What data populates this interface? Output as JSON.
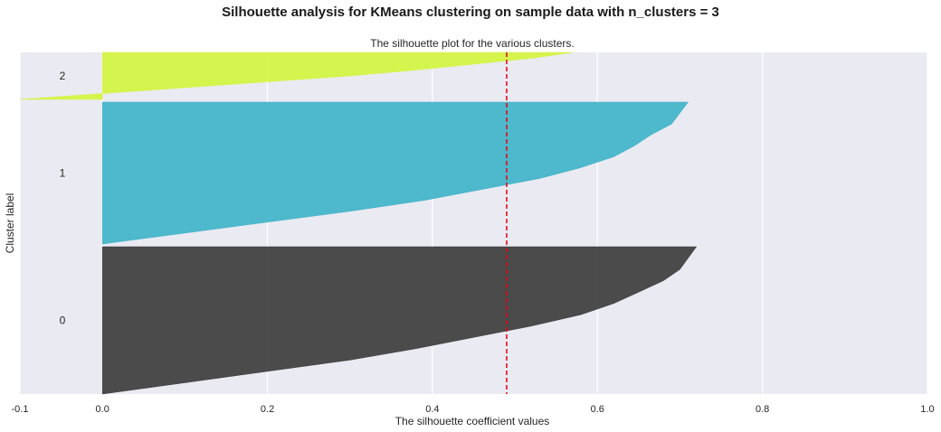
{
  "suptitle": "Silhouette analysis for KMeans clustering on sample data with n_clusters = 3",
  "chart_data": {
    "type": "area",
    "title": "The silhouette plot for the various clusters.",
    "xlabel": "The silhouette coefficient values",
    "ylabel": "Cluster label",
    "xlim": [
      -0.1,
      1.0
    ],
    "xticks": [
      "-0.1",
      "0.0",
      "0.2",
      "0.4",
      "0.6",
      "0.8",
      "1.0"
    ],
    "xtick_values": [
      -0.1,
      0.0,
      0.2,
      0.4,
      0.6,
      0.8,
      1.0
    ],
    "grid": true,
    "average_silhouette_score": 0.49,
    "average_line_color": "#e8000b",
    "series": [
      {
        "label": "0",
        "color": "#3a3a3a",
        "values": [
          0.0,
          0.1,
          0.2,
          0.3,
          0.38,
          0.45,
          0.52,
          0.58,
          0.62,
          0.65,
          0.68,
          0.7,
          0.71,
          0.72
        ]
      },
      {
        "label": "1",
        "color": "#3db2c8",
        "values": [
          0.0,
          0.1,
          0.2,
          0.3,
          0.39,
          0.46,
          0.53,
          0.58,
          0.62,
          0.645,
          0.665,
          0.69,
          0.7,
          0.71
        ]
      },
      {
        "label": "2",
        "color": "#d3f53c",
        "values": [
          -0.1,
          0.0,
          0.1,
          0.2,
          0.3,
          0.38,
          0.45,
          0.52,
          0.57
        ]
      }
    ]
  }
}
